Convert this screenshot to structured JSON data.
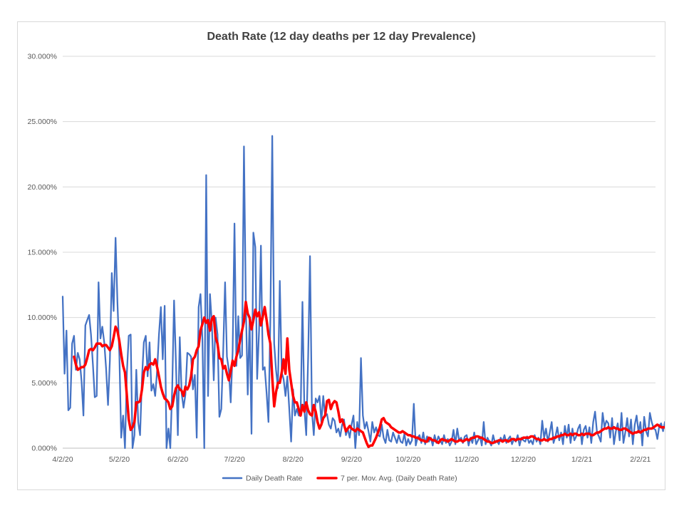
{
  "chart_data": {
    "type": "line",
    "title": "Death Rate (12 day deaths per 12 day Prevalence)",
    "xlabel": "",
    "ylabel": "",
    "ylim": [
      0,
      0.3
    ],
    "y_ticks": [
      0,
      0.05,
      0.1,
      0.15,
      0.2,
      0.25,
      0.3
    ],
    "y_tick_labels": [
      "0.000%",
      "5.000%",
      "10.000%",
      "15.000%",
      "20.000%",
      "25.000%",
      "30.000%"
    ],
    "x_tick_labels": [
      "4/2/20",
      "5/2/20",
      "6/2/20",
      "7/2/20",
      "8/2/20",
      "9/2/20",
      "10/2/20",
      "11/2/20",
      "12/2/20",
      "1/2/21",
      "2/2/21"
    ],
    "x_start": "2020-04-02",
    "x_end": "2021-02-10",
    "grid": true,
    "legend_position": "bottom",
    "series": [
      {
        "name": "Daily Death Rate",
        "color": "#4472c4",
        "x_start": "2020-04-02",
        "values": [
          0.116,
          0.057,
          0.09,
          0.029,
          0.031,
          0.08,
          0.086,
          0.06,
          0.073,
          0.068,
          0.051,
          0.025,
          0.094,
          0.098,
          0.102,
          0.087,
          0.064,
          0.039,
          0.04,
          0.127,
          0.084,
          0.093,
          0.081,
          0.061,
          0.033,
          0.067,
          0.134,
          0.105,
          0.161,
          0.112,
          0.072,
          0.008,
          0.025,
          0.0,
          0.058,
          0.086,
          0.087,
          0.0,
          0.01,
          0.06,
          0.02,
          0.01,
          0.054,
          0.081,
          0.086,
          0.055,
          0.081,
          0.044,
          0.049,
          0.04,
          0.059,
          0.087,
          0.108,
          0.068,
          0.109,
          0.0,
          0.015,
          0.0,
          0.046,
          0.113,
          0.064,
          0.01,
          0.085,
          0.042,
          0.031,
          0.041,
          0.073,
          0.072,
          0.07,
          0.045,
          0.056,
          0.008,
          0.108,
          0.118,
          0.083,
          0.0,
          0.209,
          0.04,
          0.118,
          0.096,
          0.052,
          0.1,
          0.087,
          0.024,
          0.03,
          0.073,
          0.127,
          0.07,
          0.06,
          0.035,
          0.074,
          0.172,
          0.063,
          0.101,
          0.069,
          0.071,
          0.231,
          0.111,
          0.041,
          0.1,
          0.011,
          0.165,
          0.154,
          0.053,
          0.09,
          0.155,
          0.06,
          0.062,
          0.042,
          0.02,
          0.1,
          0.239,
          0.08,
          0.06,
          0.046,
          0.128,
          0.058,
          0.053,
          0.04,
          0.055,
          0.03,
          0.005,
          0.045,
          0.025,
          0.03,
          0.025,
          0.025,
          0.112,
          0.03,
          0.01,
          0.07,
          0.147,
          0.028,
          0.01,
          0.038,
          0.035,
          0.04,
          0.02,
          0.04,
          0.025,
          0.026,
          0.018,
          0.015,
          0.023,
          0.021,
          0.012,
          0.015,
          0.009,
          0.018,
          0.022,
          0.01,
          0.015,
          0.008,
          0.018,
          0.025,
          0.0,
          0.02,
          0.01,
          0.069,
          0.025,
          0.015,
          0.02,
          0.013,
          0.005,
          0.02,
          0.012,
          0.016,
          0.01,
          0.009,
          0.018,
          0.008,
          0.004,
          0.014,
          0.006,
          0.005,
          0.012,
          0.008,
          0.004,
          0.01,
          0.005,
          0.004,
          0.011,
          0.002,
          0.007,
          0.003,
          0.006,
          0.034,
          0.002,
          0.008,
          0.01,
          0.004,
          0.012,
          0.003,
          0.009,
          0.005,
          0.008,
          0.002,
          0.01,
          0.004,
          0.009,
          0.006,
          0.003,
          0.01,
          0.004,
          0.007,
          0.002,
          0.005,
          0.014,
          0.003,
          0.015,
          0.006,
          0.008,
          0.004,
          0.009,
          0.01,
          0.002,
          0.008,
          0.004,
          0.012,
          0.003,
          0.006,
          0.009,
          0.002,
          0.02,
          0.003,
          0.008,
          0.005,
          0.002,
          0.01,
          0.004,
          0.006,
          0.003,
          0.008,
          0.005,
          0.01,
          0.004,
          0.007,
          0.009,
          0.003,
          0.007,
          0.005,
          0.01,
          0.002,
          0.008,
          0.006,
          0.005,
          0.009,
          0.004,
          0.006,
          0.003,
          0.01,
          0.005,
          0.008,
          0.003,
          0.021,
          0.008,
          0.015,
          0.005,
          0.012,
          0.02,
          0.004,
          0.009,
          0.016,
          0.006,
          0.012,
          0.003,
          0.017,
          0.008,
          0.018,
          0.004,
          0.015,
          0.006,
          0.009,
          0.015,
          0.018,
          0.003,
          0.014,
          0.017,
          0.008,
          0.016,
          0.004,
          0.02,
          0.028,
          0.012,
          0.009,
          0.005,
          0.027,
          0.016,
          0.021,
          0.019,
          0.008,
          0.023,
          0.003,
          0.013,
          0.019,
          0.006,
          0.027,
          0.004,
          0.012,
          0.023,
          0.009,
          0.022,
          0.003,
          0.018,
          0.025,
          0.012,
          0.02,
          0.002,
          0.024,
          0.013,
          0.009,
          0.027,
          0.02,
          0.015,
          0.014,
          0.007,
          0.017,
          0.019,
          0.013,
          0.02,
          0.015,
          0.011,
          0.021,
          0.025,
          0.022
        ]
      },
      {
        "name": "7 per. Mov. Avg. (Daily Death Rate)",
        "color": "#ff0000",
        "x_start": "2020-04-08",
        "values": [
          0.07,
          0.064,
          0.06,
          0.061,
          0.062,
          0.062,
          0.064,
          0.069,
          0.075,
          0.076,
          0.075,
          0.077,
          0.08,
          0.08,
          0.08,
          0.078,
          0.079,
          0.079,
          0.077,
          0.075,
          0.078,
          0.085,
          0.093,
          0.09,
          0.082,
          0.072,
          0.063,
          0.058,
          0.04,
          0.022,
          0.014,
          0.016,
          0.02,
          0.035,
          0.035,
          0.036,
          0.045,
          0.058,
          0.062,
          0.06,
          0.064,
          0.065,
          0.064,
          0.068,
          0.062,
          0.055,
          0.047,
          0.042,
          0.038,
          0.037,
          0.035,
          0.03,
          0.032,
          0.04,
          0.046,
          0.048,
          0.045,
          0.044,
          0.04,
          0.047,
          0.045,
          0.048,
          0.055,
          0.068,
          0.07,
          0.075,
          0.078,
          0.09,
          0.095,
          0.1,
          0.096,
          0.098,
          0.09,
          0.099,
          0.101,
          0.085,
          0.08,
          0.069,
          0.068,
          0.061,
          0.063,
          0.057,
          0.052,
          0.059,
          0.067,
          0.063,
          0.07,
          0.075,
          0.083,
          0.09,
          0.097,
          0.112,
          0.103,
          0.1,
          0.091,
          0.098,
          0.106,
          0.101,
          0.104,
          0.094,
          0.101,
          0.108,
          0.098,
          0.087,
          0.08,
          0.054,
          0.032,
          0.043,
          0.05,
          0.05,
          0.058,
          0.068,
          0.057,
          0.084,
          0.06,
          0.05,
          0.04,
          0.035,
          0.035,
          0.03,
          0.025,
          0.033,
          0.028,
          0.035,
          0.029,
          0.026,
          0.025,
          0.033,
          0.028,
          0.02,
          0.015,
          0.018,
          0.023,
          0.025,
          0.036,
          0.037,
          0.03,
          0.034,
          0.036,
          0.035,
          0.028,
          0.02,
          0.022,
          0.018,
          0.013,
          0.015,
          0.017,
          0.015,
          0.014,
          0.013,
          0.015,
          0.014,
          0.013,
          0.012,
          0.008,
          0.004,
          0.001,
          0.002,
          0.002,
          0.005,
          0.008,
          0.012,
          0.016,
          0.022,
          0.023,
          0.02,
          0.019,
          0.018,
          0.016,
          0.015,
          0.014,
          0.013,
          0.012,
          0.012,
          0.013,
          0.012,
          0.011,
          0.01,
          0.01,
          0.009,
          0.009,
          0.008,
          0.008,
          0.007,
          0.006,
          0.006,
          0.005,
          0.005,
          0.008,
          0.007,
          0.006,
          0.006,
          0.005,
          0.004,
          0.006,
          0.007,
          0.006,
          0.006,
          0.005,
          0.006,
          0.007,
          0.006,
          0.005,
          0.005,
          0.006,
          0.006,
          0.005,
          0.006,
          0.007,
          0.006,
          0.007,
          0.008,
          0.008,
          0.009,
          0.009,
          0.008,
          0.008,
          0.007,
          0.006,
          0.005,
          0.005,
          0.004,
          0.004,
          0.005,
          0.005,
          0.006,
          0.006,
          0.005,
          0.006,
          0.006,
          0.005,
          0.006,
          0.007,
          0.007,
          0.006,
          0.007,
          0.007,
          0.007,
          0.008,
          0.008,
          0.008,
          0.008,
          0.009,
          0.009,
          0.008,
          0.007,
          0.007,
          0.006,
          0.006,
          0.007,
          0.006,
          0.006,
          0.007,
          0.007,
          0.008,
          0.008,
          0.009,
          0.009,
          0.01,
          0.01,
          0.011,
          0.01,
          0.01,
          0.011,
          0.01,
          0.011,
          0.011,
          0.01,
          0.01,
          0.011,
          0.01,
          0.011,
          0.011,
          0.011,
          0.01,
          0.01,
          0.011,
          0.012,
          0.012,
          0.013,
          0.014,
          0.015,
          0.015,
          0.016,
          0.015,
          0.015,
          0.016,
          0.015,
          0.015,
          0.014,
          0.014,
          0.015,
          0.015,
          0.014,
          0.013,
          0.012,
          0.011,
          0.012,
          0.012,
          0.013,
          0.012,
          0.013,
          0.014,
          0.014,
          0.015,
          0.015,
          0.015,
          0.016,
          0.017,
          0.018,
          0.017,
          0.016,
          0.016,
          0.016,
          0.017,
          0.017,
          0.018,
          0.02,
          0.021,
          0.024,
          0.023,
          0.023
        ]
      }
    ]
  }
}
